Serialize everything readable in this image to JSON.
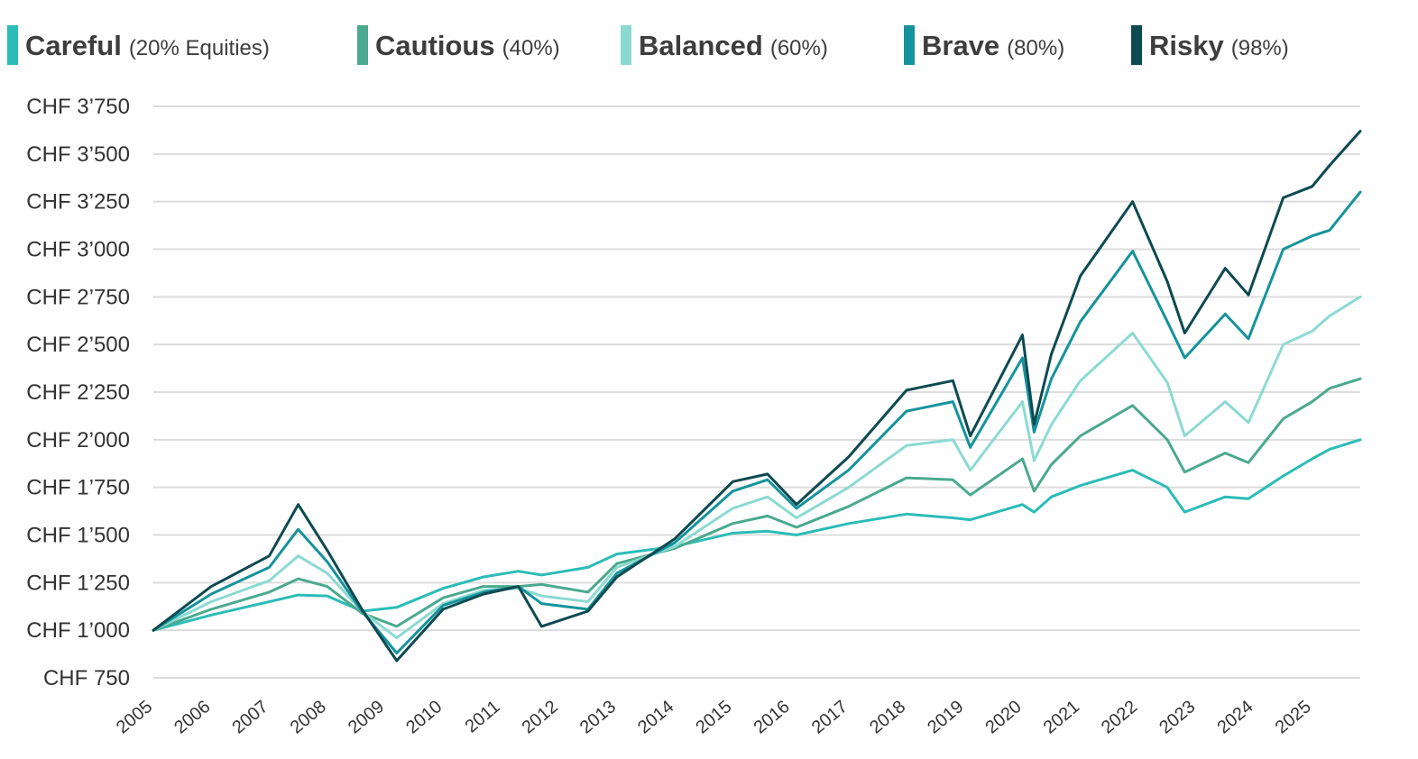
{
  "chart_data": {
    "type": "line",
    "title": "",
    "xlabel": "",
    "ylabel": "",
    "ylim": [
      750,
      3750
    ],
    "xlim": [
      2005.0,
      2025.83
    ],
    "y_tick_values": [
      750,
      1000,
      1250,
      1500,
      1750,
      2000,
      2250,
      2500,
      2750,
      3000,
      3250,
      3500,
      3750
    ],
    "y_tick_labels": [
      "CHF 750",
      "CHF 1’000",
      "CHF 1’250",
      "CHF 1’500",
      "CHF 1’750",
      "CHF 2’000",
      "CHF 2’250",
      "CHF 2’500",
      "CHF 2’750",
      "CHF 3’000",
      "CHF 3’250",
      "CHF 3’500",
      "CHF 3’750"
    ],
    "x_tick_values": [
      2005,
      2006,
      2007,
      2008,
      2009,
      2010,
      2011,
      2012,
      2013,
      2014,
      2015,
      2016,
      2017,
      2018,
      2019,
      2020,
      2021,
      2022,
      2023,
      2024,
      2025
    ],
    "x_tick_labels": [
      "2005",
      "2006",
      "2007",
      "2008",
      "2009",
      "2010",
      "2011",
      "2012",
      "2013",
      "2014",
      "2015",
      "2016",
      "2017",
      "2018",
      "2019",
      "2020",
      "2021",
      "2022",
      "2023",
      "2024",
      "2025"
    ],
    "grid": true,
    "legend_position": "top",
    "x": [
      2005.0,
      2006.0,
      2007.0,
      2007.5,
      2008.0,
      2008.6,
      2009.2,
      2010.0,
      2010.7,
      2011.3,
      2011.7,
      2012.5,
      2013.0,
      2014.0,
      2015.0,
      2015.6,
      2016.1,
      2017.0,
      2018.0,
      2018.8,
      2019.1,
      2020.0,
      2020.2,
      2020.5,
      2021.0,
      2021.9,
      2022.5,
      2022.8,
      2023.5,
      2023.9,
      2024.5,
      2025.0,
      2025.3,
      2025.83
    ],
    "series": [
      {
        "name": "Careful",
        "subtitle": "(20% Equities)",
        "color": "#2bbcb8",
        "values": [
          1000,
          1080,
          1150,
          1185,
          1180,
          1100,
          1120,
          1220,
          1280,
          1310,
          1290,
          1330,
          1400,
          1440,
          1510,
          1520,
          1500,
          1560,
          1610,
          1590,
          1580,
          1660,
          1620,
          1700,
          1760,
          1840,
          1750,
          1620,
          1700,
          1690,
          1810,
          1900,
          1950,
          2000
        ]
      },
      {
        "name": "Cautious",
        "subtitle": "(40%)",
        "color": "#4aa98e",
        "values": [
          1000,
          1110,
          1200,
          1270,
          1230,
          1090,
          1020,
          1170,
          1230,
          1230,
          1240,
          1200,
          1350,
          1430,
          1560,
          1600,
          1540,
          1650,
          1800,
          1790,
          1710,
          1900,
          1730,
          1870,
          2020,
          2180,
          2000,
          1830,
          1930,
          1880,
          2110,
          2200,
          2270,
          2320
        ]
      },
      {
        "name": "Balanced",
        "subtitle": "(60%)",
        "color": "#8bdad2",
        "values": [
          1000,
          1150,
          1260,
          1390,
          1300,
          1100,
          960,
          1140,
          1210,
          1220,
          1180,
          1150,
          1330,
          1440,
          1640,
          1700,
          1590,
          1750,
          1970,
          2000,
          1840,
          2200,
          1890,
          2080,
          2310,
          2560,
          2300,
          2020,
          2200,
          2090,
          2500,
          2570,
          2650,
          2750
        ]
      },
      {
        "name": "Brave",
        "subtitle": "(80%)",
        "color": "#14939c",
        "values": [
          1000,
          1190,
          1330,
          1530,
          1360,
          1100,
          880,
          1130,
          1200,
          1230,
          1140,
          1110,
          1300,
          1460,
          1730,
          1790,
          1640,
          1840,
          2150,
          2200,
          1960,
          2430,
          2040,
          2320,
          2620,
          2990,
          2620,
          2430,
          2660,
          2530,
          3000,
          3070,
          3100,
          3300
        ]
      },
      {
        "name": "Risky",
        "subtitle": "(98%)",
        "color": "#0c4a50",
        "values": [
          1000,
          1230,
          1390,
          1660,
          1420,
          1110,
          840,
          1110,
          1190,
          1230,
          1020,
          1100,
          1280,
          1480,
          1780,
          1820,
          1660,
          1910,
          2260,
          2310,
          2020,
          2550,
          2080,
          2450,
          2860,
          3250,
          2830,
          2560,
          2900,
          2760,
          3270,
          3330,
          3440,
          3620
        ]
      }
    ]
  }
}
